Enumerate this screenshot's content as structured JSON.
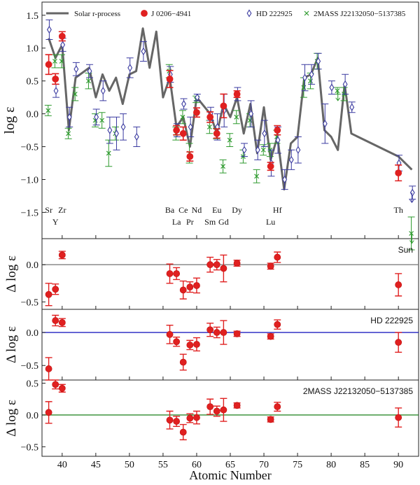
{
  "chart_data": [
    {
      "type": "line",
      "ylabel": "log ε",
      "xlim": [
        37,
        93
      ],
      "ylim": [
        -1.9,
        1.7
      ],
      "yticks": [
        -1.5,
        -1.0,
        -0.5,
        0.0,
        0.5,
        1.0,
        1.5
      ],
      "ytick_labels": [
        "−1.5",
        "−1.0",
        "−0.5",
        "0.0",
        "0.5",
        "1.0",
        "1.5"
      ],
      "legend": [
        {
          "name": "Solar r-process",
          "marker": "line",
          "color": "#666666"
        },
        {
          "name": "J 0206−4941",
          "marker": "filled-circle",
          "color": "#e02020"
        },
        {
          "name": "HD 222925",
          "marker": "open-diamond",
          "color": "#3a3aa0"
        },
        {
          "name": "2MASS J22132050−5137385",
          "marker": "x",
          "color": "#2e9a2e"
        }
      ],
      "element_labels": [
        {
          "text": "Sr",
          "x": 38,
          "row": 1
        },
        {
          "text": "Y",
          "x": 39,
          "row": 2
        },
        {
          "text": "Zr",
          "x": 40,
          "row": 1
        },
        {
          "text": "Ba",
          "x": 56,
          "row": 1
        },
        {
          "text": "La",
          "x": 57,
          "row": 2
        },
        {
          "text": "Ce",
          "x": 58,
          "row": 1
        },
        {
          "text": "Pr",
          "x": 59,
          "row": 2
        },
        {
          "text": "Nd",
          "x": 60,
          "row": 1
        },
        {
          "text": "Sm",
          "x": 62,
          "row": 2
        },
        {
          "text": "Eu",
          "x": 63,
          "row": 1
        },
        {
          "text": "Gd",
          "x": 64,
          "row": 2
        },
        {
          "text": "Dy",
          "x": 66,
          "row": 1
        },
        {
          "text": "Lu",
          "x": 71,
          "row": 2
        },
        {
          "text": "Hf",
          "x": 72,
          "row": 1
        },
        {
          "text": "Th",
          "x": 90,
          "row": 1
        }
      ],
      "series": [
        {
          "name": "Solar r-process",
          "kind": "line",
          "color": "#666666",
          "x": [
            38,
            39,
            40,
            41,
            42,
            44,
            45,
            46,
            47,
            48,
            49,
            50,
            51,
            52,
            53,
            54,
            55,
            56,
            57,
            58,
            59,
            60,
            62,
            63,
            64,
            65,
            66,
            67,
            68,
            69,
            70,
            71,
            72,
            73,
            74,
            75,
            76,
            77,
            78,
            79,
            80,
            81,
            82,
            83,
            90,
            92
          ],
          "y": [
            1.15,
            0.85,
            1.05,
            -0.25,
            0.55,
            0.7,
            0.25,
            0.6,
            0.35,
            0.55,
            0.15,
            0.6,
            0.65,
            1.3,
            0.7,
            1.25,
            0.25,
            0.55,
            -0.2,
            -0.05,
            -0.5,
            0.25,
            0.0,
            -0.3,
            0.15,
            -0.05,
            0.25,
            -0.3,
            0.15,
            -0.6,
            0.1,
            -0.7,
            -0.35,
            -1.15,
            -0.45,
            -0.35,
            0.55,
            0.6,
            0.85,
            -0.25,
            -0.35,
            -0.55,
            0.45,
            -0.3,
            -0.65,
            -0.85
          ]
        },
        {
          "name": "J 0206−4941",
          "kind": "points",
          "color": "#e02020",
          "x": [
            38,
            39,
            40,
            56,
            57,
            58,
            59,
            60,
            62,
            63,
            64,
            66,
            71,
            72,
            90
          ],
          "y": [
            0.75,
            0.53,
            1.18,
            0.53,
            -0.25,
            -0.3,
            -0.65,
            0.02,
            -0.05,
            -0.3,
            0.12,
            0.3,
            -0.8,
            -0.25,
            -0.9
          ],
          "err": [
            0.15,
            0.08,
            0.07,
            0.13,
            0.07,
            0.1,
            0.07,
            0.07,
            0.08,
            0.07,
            0.18,
            0.05,
            0.06,
            0.07,
            0.12
          ]
        },
        {
          "name": "HD 222925",
          "kind": "points",
          "color": "#3a3aa0",
          "x": [
            38,
            39,
            40,
            41,
            42,
            44,
            45,
            46,
            47,
            48,
            49,
            50,
            51,
            52,
            56,
            57,
            58,
            59,
            60,
            62,
            63,
            64,
            66,
            67,
            68,
            69,
            70,
            71,
            72,
            73,
            74,
            75,
            76,
            77,
            78,
            79,
            80,
            82,
            83,
            90,
            92
          ],
          "y": [
            1.28,
            0.35,
            1.05,
            -0.05,
            0.68,
            0.65,
            -0.05,
            0.35,
            -0.25,
            -0.3,
            -0.2,
            0.7,
            -0.35,
            0.95,
            0.6,
            -0.25,
            0.15,
            -0.2,
            0.25,
            0.0,
            -0.2,
            0.05,
            0.3,
            -0.55,
            0.0,
            -0.55,
            -0.3,
            -0.75,
            -0.4,
            -1.0,
            -0.7,
            -0.55,
            0.55,
            0.6,
            0.8,
            -0.15,
            0.4,
            0.45,
            0.1,
            -0.75,
            -1.2
          ],
          "err": [
            0.15,
            0.1,
            0.1,
            0.15,
            0.1,
            0.1,
            0.12,
            0.15,
            0.2,
            0.25,
            0.2,
            0.15,
            0.15,
            0.15,
            0.12,
            0.1,
            0.08,
            0.15,
            0.05,
            0.1,
            0.2,
            0.25,
            0.1,
            0.1,
            0.2,
            0.15,
            0.2,
            0.2,
            0.2,
            0.15,
            0.15,
            0.2,
            0.2,
            0.15,
            0.12,
            0.3,
            0.1,
            0.15,
            0.08,
            0.12,
            0.1
          ]
        },
        {
          "name": "2MASS J22132050−5137385",
          "kind": "points",
          "color": "#2e9a2e",
          "x": [
            38,
            39,
            40,
            41,
            42,
            44,
            45,
            46,
            47,
            48,
            56,
            57,
            58,
            59,
            60,
            62,
            63,
            64,
            65,
            66,
            67,
            68,
            69,
            70,
            71,
            72,
            76,
            77,
            78,
            81,
            82,
            92
          ],
          "y": [
            0.05,
            0.8,
            0.8,
            -0.3,
            0.3,
            0.5,
            -0.1,
            -0.1,
            -0.6,
            -0.3,
            0.65,
            -0.3,
            -0.05,
            -0.6,
            0.22,
            -0.2,
            -0.3,
            -0.8,
            -0.4,
            -0.05,
            -0.65,
            -0.1,
            -0.95,
            -0.55,
            -0.55,
            -0.35,
            0.4,
            0.5,
            0.8,
            0.35,
            0.3,
            -1.82
          ],
          "err": [
            0.08,
            0.1,
            0.1,
            0.08,
            0.1,
            0.12,
            0.1,
            0.12,
            0.2,
            0.1,
            0.1,
            0.1,
            0.1,
            0.15,
            0.05,
            0.1,
            0.08,
            0.1,
            0.1,
            0.1,
            0.1,
            0.1,
            0.1,
            0.08,
            0.1,
            0.1,
            0.15,
            0.12,
            0.12,
            0.05,
            0.1,
            0.25
          ]
        }
      ]
    },
    {
      "type": "scatter",
      "ylabel": "Δ log ε",
      "panel_label": "Sun",
      "reference_color": "#808080",
      "ylim": [
        -0.6,
        0.35
      ],
      "yticks": [
        -0.5,
        0.0
      ],
      "ytick_labels": [
        "−0.5",
        "0.0"
      ],
      "x": [
        38,
        39,
        40,
        56,
        57,
        58,
        59,
        60,
        62,
        63,
        64,
        66,
        71,
        72,
        90
      ],
      "y": [
        -0.4,
        -0.33,
        0.13,
        -0.12,
        -0.12,
        -0.34,
        -0.3,
        -0.28,
        0.0,
        0.0,
        -0.05,
        0.02,
        -0.02,
        0.1,
        -0.27
      ],
      "err": [
        0.15,
        0.07,
        0.05,
        0.13,
        0.08,
        0.12,
        0.07,
        0.1,
        0.1,
        0.07,
        0.18,
        0.04,
        0.04,
        0.07,
        0.15
      ]
    },
    {
      "type": "scatter",
      "ylabel": "Δ log ε",
      "panel_label": "HD 222925",
      "reference_color": "#2020c0",
      "ylim": [
        -0.72,
        0.35
      ],
      "yticks": [
        -0.5,
        0.0
      ],
      "ytick_labels": [
        "−0.5",
        "0.0"
      ],
      "x": [
        38,
        39,
        40,
        56,
        57,
        58,
        59,
        60,
        62,
        63,
        64,
        66,
        71,
        72,
        90
      ],
      "y": [
        -0.55,
        0.18,
        0.15,
        -0.03,
        -0.14,
        -0.45,
        -0.19,
        -0.18,
        0.04,
        0.0,
        0.0,
        -0.02,
        -0.06,
        0.12,
        -0.15
      ],
      "err": [
        0.17,
        0.08,
        0.06,
        0.14,
        0.07,
        0.12,
        0.07,
        0.1,
        0.1,
        0.08,
        0.18,
        0.04,
        0.04,
        0.07,
        0.15
      ]
    },
    {
      "type": "scatter",
      "ylabel": "Δ log ε",
      "panel_label": "2MASS J22132050−5137385",
      "reference_color": "#2e8b2e",
      "xlabel": "Atomic Number",
      "xticks": [
        40,
        45,
        50,
        55,
        60,
        65,
        70,
        75,
        80,
        85,
        90
      ],
      "ylim": [
        -0.65,
        0.55
      ],
      "yticks": [
        -0.5,
        0.0,
        0.5
      ],
      "ytick_labels": [
        "−0.5",
        "0.0",
        "0.5"
      ],
      "x": [
        38,
        39,
        40,
        56,
        57,
        58,
        59,
        60,
        62,
        63,
        64,
        66,
        71,
        72,
        90
      ],
      "y": [
        0.04,
        0.48,
        0.42,
        -0.08,
        -0.1,
        -0.27,
        -0.05,
        -0.04,
        0.13,
        0.06,
        0.08,
        0.15,
        -0.07,
        0.13,
        -0.04
      ],
      "err": [
        0.17,
        0.07,
        0.06,
        0.14,
        0.08,
        0.12,
        0.07,
        0.1,
        0.12,
        0.08,
        0.18,
        0.04,
        0.04,
        0.07,
        0.15
      ]
    }
  ]
}
